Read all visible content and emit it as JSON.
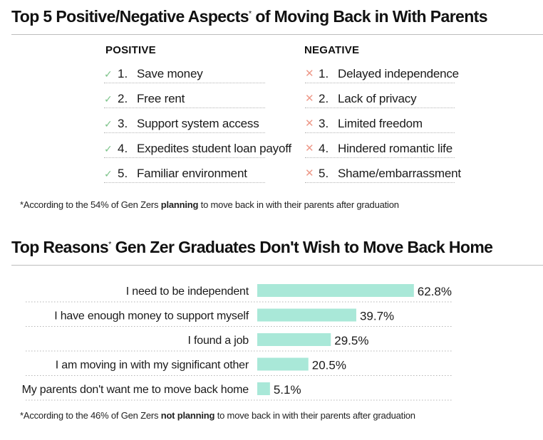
{
  "section1": {
    "title": "Top 5 Positive/Negative Aspects",
    "title_mark": "*",
    "title_suffix": " of Moving Back in With Parents",
    "positive": {
      "heading": "POSITIVE",
      "items": [
        {
          "num": "1.",
          "text": "Save money"
        },
        {
          "num": "2.",
          "text": "Free rent"
        },
        {
          "num": "3.",
          "text": "Support system access"
        },
        {
          "num": "4.",
          "text": "Expedites student loan payoff"
        },
        {
          "num": "5.",
          "text": "Familiar environment"
        }
      ]
    },
    "negative": {
      "heading": "NEGATIVE",
      "items": [
        {
          "num": "1.",
          "text": "Delayed independence"
        },
        {
          "num": "2.",
          "text": "Lack of privacy"
        },
        {
          "num": "3.",
          "text": "Limited freedom"
        },
        {
          "num": "4.",
          "text": "Hindered romantic life"
        },
        {
          "num": "5.",
          "text": "Shame/embarrassment"
        }
      ]
    },
    "footnote": {
      "before": "*According to the 54% of Gen Zers ",
      "bold": "planning",
      "after": " to move back in with their parents after graduation"
    },
    "check_color": "#7cc389",
    "cross_color": "#ee9a8a"
  },
  "section2": {
    "title": "Top Reasons",
    "title_mark": "*",
    "title_suffix": " Gen Zer Graduates Don't Wish to Move Back Home",
    "footnote": {
      "before": "*According to the 46% of Gen Zers ",
      "bold": "not planning",
      "after": " to move back in with their parents after graduation"
    }
  },
  "chart_data": {
    "type": "bar",
    "orientation": "horizontal",
    "categories": [
      "I need to be independent",
      "I have enough money to support myself",
      "I found a job",
      "I am moving in with my significant other",
      "My parents don't want me to move back home"
    ],
    "values": [
      62.8,
      39.7,
      29.5,
      20.5,
      5.1
    ],
    "value_labels": [
      "62.8%",
      "39.7%",
      "29.5%",
      "20.5%",
      "5.1%"
    ],
    "xlim": [
      0,
      100
    ],
    "grid": false,
    "bar_color": "#a9e8d8"
  }
}
